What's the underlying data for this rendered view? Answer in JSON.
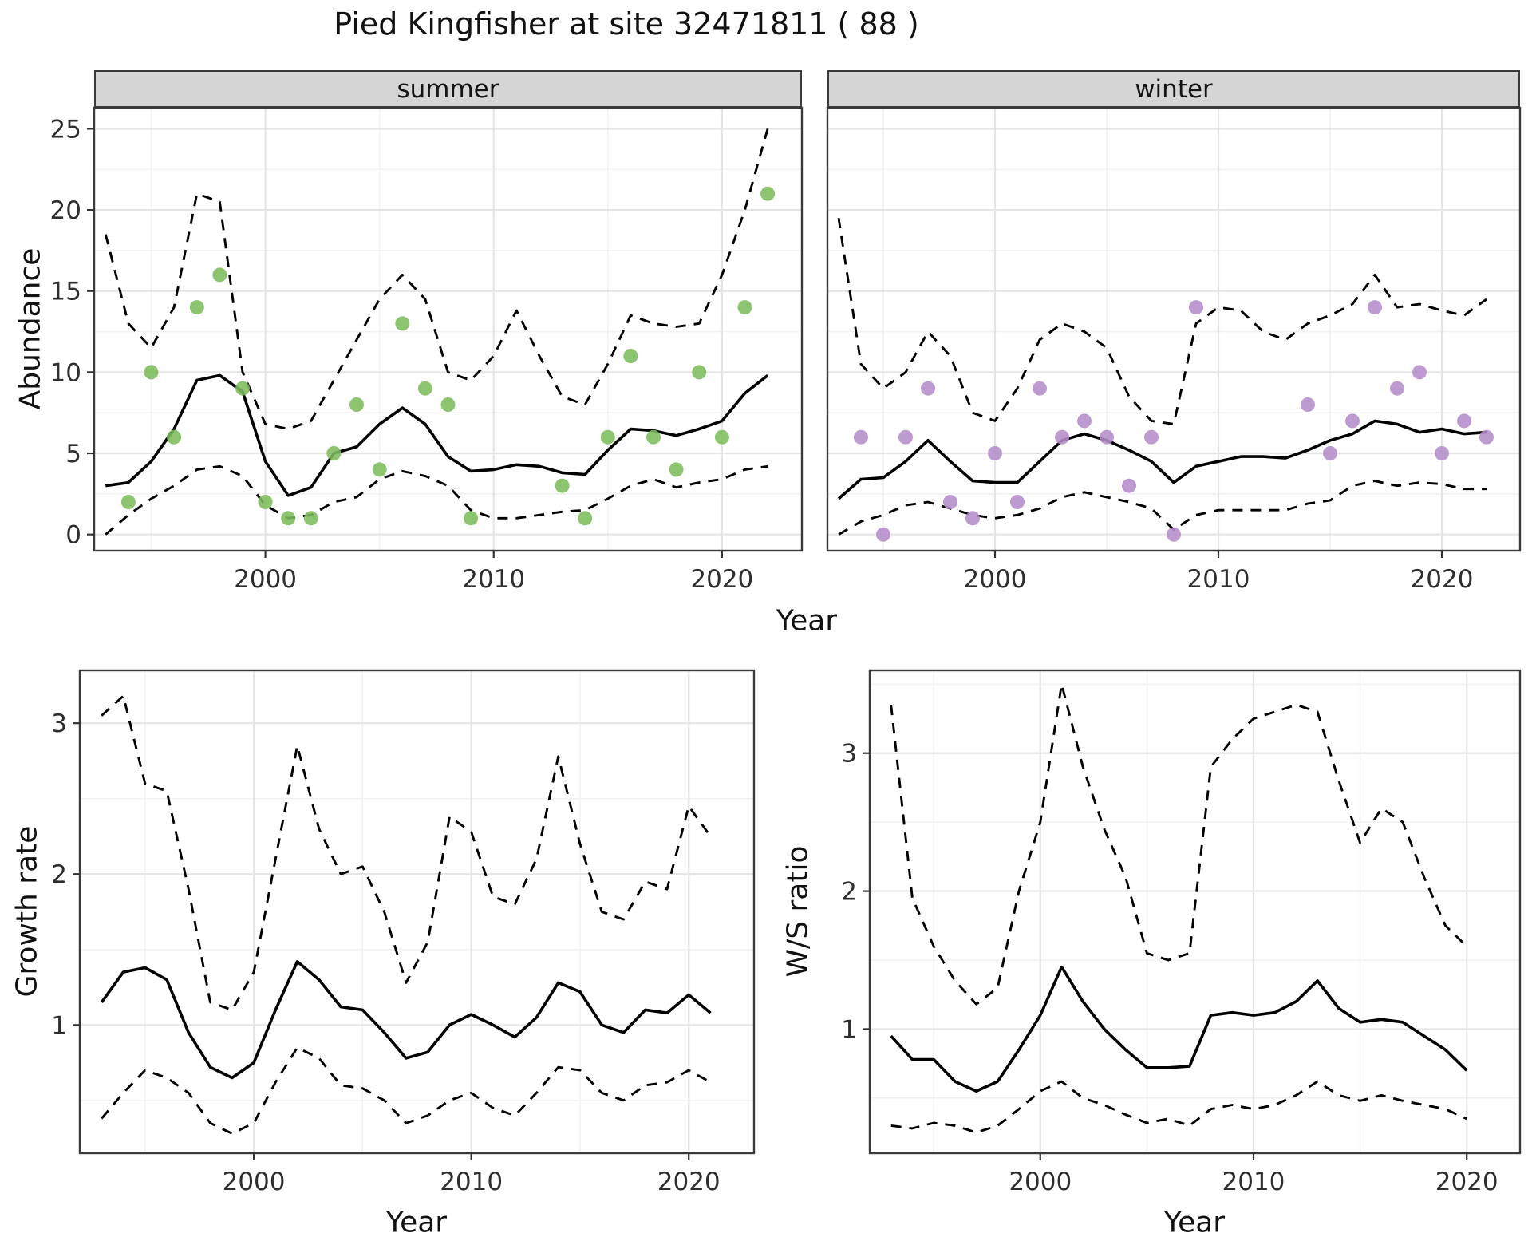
{
  "title": "Pied Kingfisher at site 32471811 ( 88 )",
  "colors": {
    "summer_point": "#7cbc5c",
    "winter_point": "#b48cc8",
    "line": "#000000",
    "strip_bg": "#d5d5d5"
  },
  "chart_data": [
    {
      "id": "abundance",
      "type": "line",
      "xlabel": "Year",
      "ylabel": "Abundance",
      "xlim": [
        1992.5,
        2023.5
      ],
      "ylim": [
        -1,
        26.3
      ],
      "xticks": [
        2000,
        2010,
        2020
      ],
      "yticks": [
        0,
        5,
        10,
        15,
        20,
        25
      ],
      "grid": true,
      "legend": "none",
      "line_color": "#000000",
      "facets": [
        {
          "label": "summer",
          "point_color": "#7cbc5c",
          "points": {
            "years": [
              1994,
              1995,
              1996,
              1997,
              1998,
              1999,
              2000,
              2001,
              2002,
              2003,
              2004,
              2005,
              2006,
              2007,
              2008,
              2009,
              2013,
              2014,
              2015,
              2016,
              2017,
              2018,
              2019,
              2020,
              2021,
              2022
            ],
            "values": [
              2,
              10,
              6,
              14,
              16,
              9,
              2,
              1,
              1,
              5,
              8,
              4,
              13,
              9,
              8,
              1,
              3,
              1,
              6,
              11,
              6,
              4,
              10,
              6,
              14,
              21
            ]
          },
          "series": [
            {
              "name": "fit",
              "style": "solid",
              "year_start": 1993,
              "values": [
                3.0,
                3.2,
                4.5,
                6.5,
                9.5,
                9.8,
                8.8,
                4.5,
                2.4,
                2.9,
                5.0,
                5.4,
                6.8,
                7.8,
                6.8,
                4.8,
                3.9,
                4.0,
                4.3,
                4.2,
                3.8,
                3.7,
                5.2,
                6.5,
                6.4,
                6.1,
                6.5,
                7.0,
                8.7,
                9.8
              ]
            },
            {
              "name": "upper_ci",
              "style": "dashed",
              "year_start": 1993,
              "values": [
                18.5,
                13.0,
                11.5,
                14.0,
                21.0,
                20.5,
                10.0,
                6.8,
                6.5,
                7.0,
                9.5,
                12.0,
                14.5,
                16.0,
                14.5,
                10.0,
                9.5,
                11.0,
                13.8,
                11.0,
                8.5,
                8.0,
                10.5,
                13.5,
                13.0,
                12.8,
                13.0,
                16.0,
                20.0,
                25.0
              ]
            },
            {
              "name": "lower_ci",
              "style": "dashed",
              "year_start": 1993,
              "values": [
                0.0,
                1.2,
                2.2,
                3.0,
                4.0,
                4.2,
                3.6,
                1.8,
                1.0,
                1.2,
                2.0,
                2.3,
                3.4,
                3.9,
                3.6,
                3.0,
                1.5,
                1.0,
                1.0,
                1.2,
                1.4,
                1.5,
                2.2,
                3.0,
                3.4,
                2.9,
                3.2,
                3.4,
                4.0,
                4.2
              ]
            }
          ]
        },
        {
          "label": "winter",
          "point_color": "#b48cc8",
          "points": {
            "years": [
              1994,
              1995,
              1996,
              1997,
              1998,
              1999,
              2000,
              2001,
              2002,
              2003,
              2004,
              2005,
              2006,
              2007,
              2008,
              2009,
              2014,
              2015,
              2016,
              2017,
              2018,
              2019,
              2020,
              2021,
              2022
            ],
            "values": [
              6,
              0,
              6,
              9,
              2,
              1,
              5,
              2,
              9,
              6,
              7,
              6,
              3,
              6,
              0,
              14,
              8,
              5,
              7,
              14,
              9,
              10,
              5,
              7,
              6
            ]
          },
          "series": [
            {
              "name": "fit",
              "style": "solid",
              "year_start": 1993,
              "values": [
                2.2,
                3.4,
                3.5,
                4.5,
                5.8,
                4.5,
                3.3,
                3.2,
                3.2,
                4.5,
                5.8,
                6.2,
                5.8,
                5.2,
                4.5,
                3.2,
                4.2,
                4.5,
                4.8,
                4.8,
                4.7,
                5.2,
                5.8,
                6.2,
                7.0,
                6.8,
                6.3,
                6.5,
                6.2,
                6.3
              ]
            },
            {
              "name": "upper_ci",
              "style": "dashed",
              "year_start": 1993,
              "values": [
                19.5,
                10.5,
                9.0,
                10.0,
                12.5,
                11.0,
                7.5,
                7.0,
                9.0,
                12.0,
                13.0,
                12.5,
                11.5,
                8.5,
                7.0,
                6.8,
                13.0,
                14.0,
                13.8,
                12.5,
                12.0,
                13.0,
                13.5,
                14.2,
                16.0,
                14.0,
                14.2,
                13.8,
                13.5,
                14.5
              ]
            },
            {
              "name": "lower_ci",
              "style": "dashed",
              "year_start": 1993,
              "values": [
                0.0,
                0.8,
                1.2,
                1.8,
                2.0,
                1.6,
                1.2,
                1.0,
                1.2,
                1.6,
                2.3,
                2.6,
                2.3,
                2.0,
                1.6,
                0.3,
                1.2,
                1.5,
                1.5,
                1.5,
                1.5,
                1.9,
                2.1,
                3.0,
                3.3,
                3.0,
                3.2,
                3.1,
                2.8,
                2.8
              ]
            }
          ]
        }
      ]
    },
    {
      "id": "growth_rate",
      "type": "line",
      "xlabel": "Year",
      "ylabel": "Growth rate",
      "xlim": [
        1992,
        2023
      ],
      "ylim": [
        0.15,
        3.35
      ],
      "xticks": [
        2000,
        2010,
        2020
      ],
      "yticks": [
        1,
        2,
        3
      ],
      "grid": true,
      "legend": "none",
      "line_color": "#000000",
      "series": [
        {
          "name": "fit",
          "style": "solid",
          "year_start": 1993,
          "values": [
            1.15,
            1.35,
            1.38,
            1.3,
            0.95,
            0.72,
            0.65,
            0.75,
            1.1,
            1.42,
            1.3,
            1.12,
            1.1,
            0.95,
            0.78,
            0.82,
            1.0,
            1.07,
            1.0,
            0.92,
            1.05,
            1.28,
            1.22,
            1.0,
            0.95,
            1.1,
            1.08,
            1.2,
            1.08
          ]
        },
        {
          "name": "upper_ci",
          "style": "dashed",
          "year_start": 1993,
          "values": [
            3.05,
            3.18,
            2.6,
            2.55,
            1.9,
            1.15,
            1.1,
            1.35,
            2.1,
            2.85,
            2.3,
            2.0,
            2.05,
            1.75,
            1.28,
            1.55,
            2.38,
            2.28,
            1.85,
            1.8,
            2.1,
            2.78,
            2.2,
            1.75,
            1.7,
            1.95,
            1.9,
            2.45,
            2.25
          ]
        },
        {
          "name": "lower_ci",
          "style": "dashed",
          "year_start": 1993,
          "values": [
            0.38,
            0.55,
            0.7,
            0.65,
            0.55,
            0.35,
            0.28,
            0.35,
            0.62,
            0.85,
            0.78,
            0.6,
            0.58,
            0.5,
            0.35,
            0.4,
            0.5,
            0.55,
            0.45,
            0.4,
            0.55,
            0.72,
            0.7,
            0.55,
            0.5,
            0.6,
            0.62,
            0.7,
            0.62
          ]
        }
      ]
    },
    {
      "id": "ws_ratio",
      "type": "line",
      "xlabel": "Year",
      "ylabel": "W/S ratio",
      "xlim": [
        1992,
        2022.5
      ],
      "ylim": [
        0.1,
        3.6
      ],
      "xticks": [
        2000,
        2010,
        2020
      ],
      "yticks": [
        1,
        2,
        3
      ],
      "grid": true,
      "legend": "none",
      "line_color": "#000000",
      "series": [
        {
          "name": "fit",
          "style": "solid",
          "year_start": 1993,
          "values": [
            0.95,
            0.78,
            0.78,
            0.62,
            0.55,
            0.62,
            0.85,
            1.1,
            1.45,
            1.2,
            1.0,
            0.85,
            0.72,
            0.72,
            0.73,
            1.1,
            1.12,
            1.1,
            1.12,
            1.2,
            1.35,
            1.15,
            1.05,
            1.07,
            1.05,
            0.95,
            0.85,
            0.7
          ]
        },
        {
          "name": "upper_ci",
          "style": "dashed",
          "year_start": 1993,
          "values": [
            3.35,
            1.95,
            1.6,
            1.35,
            1.18,
            1.3,
            2.0,
            2.5,
            3.5,
            2.9,
            2.45,
            2.1,
            1.55,
            1.5,
            1.55,
            2.9,
            3.1,
            3.25,
            3.3,
            3.35,
            3.3,
            2.8,
            2.35,
            2.6,
            2.5,
            2.1,
            1.75,
            1.6
          ]
        },
        {
          "name": "lower_ci",
          "style": "dashed",
          "year_start": 1993,
          "values": [
            0.3,
            0.28,
            0.32,
            0.3,
            0.25,
            0.3,
            0.42,
            0.55,
            0.62,
            0.5,
            0.45,
            0.38,
            0.32,
            0.35,
            0.3,
            0.42,
            0.45,
            0.42,
            0.45,
            0.52,
            0.62,
            0.52,
            0.48,
            0.52,
            0.48,
            0.45,
            0.42,
            0.35
          ]
        }
      ]
    }
  ]
}
